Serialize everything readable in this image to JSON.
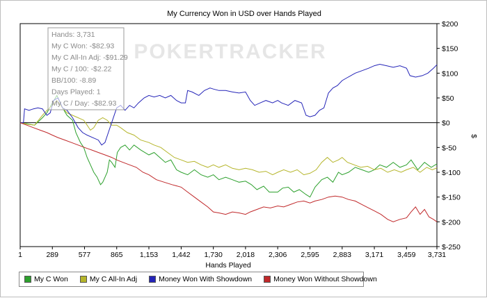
{
  "chart_data": {
    "type": "line",
    "title": "My Currency Won in USD over Hands Played",
    "xlabel": "Hands Played",
    "ylabel": "$",
    "xlim": [
      1,
      3731
    ],
    "ylim": [
      -250,
      200
    ],
    "x_ticks": [
      1,
      289,
      577,
      865,
      1153,
      1442,
      1730,
      2018,
      2306,
      2595,
      2883,
      3171,
      3459,
      3731
    ],
    "x_tick_labels": [
      "1",
      "289",
      "577",
      "865",
      "1,153",
      "1,442",
      "1,730",
      "2,018",
      "2,306",
      "2,595",
      "2,883",
      "3,171",
      "3,459",
      "3,731"
    ],
    "y_ticks": [
      200,
      150,
      100,
      50,
      0,
      -50,
      -100,
      -150,
      -200,
      -250
    ],
    "y_tick_labels": [
      "$200",
      "$150",
      "$100",
      "$50",
      "$0",
      "$-50",
      "$-100",
      "$-150",
      "$-200",
      "$-250"
    ],
    "grid": false,
    "zero_line": true,
    "legend_position": "bottom",
    "series": [
      {
        "name": "My C Won",
        "color": "#2ca02c",
        "points": [
          [
            1,
            0
          ],
          [
            60,
            -2
          ],
          [
            130,
            -5
          ],
          [
            200,
            10
          ],
          [
            240,
            20
          ],
          [
            290,
            40
          ],
          [
            330,
            55
          ],
          [
            380,
            30
          ],
          [
            420,
            15
          ],
          [
            470,
            5
          ],
          [
            500,
            -20
          ],
          [
            540,
            -40
          ],
          [
            570,
            -50
          ],
          [
            600,
            -70
          ],
          [
            630,
            -85
          ],
          [
            660,
            -100
          ],
          [
            690,
            -110
          ],
          [
            720,
            -125
          ],
          [
            740,
            -120
          ],
          [
            780,
            -100
          ],
          [
            800,
            -75
          ],
          [
            820,
            -80
          ],
          [
            850,
            -90
          ],
          [
            870,
            -60
          ],
          [
            900,
            -50
          ],
          [
            940,
            -45
          ],
          [
            980,
            -55
          ],
          [
            1020,
            -45
          ],
          [
            1080,
            -55
          ],
          [
            1153,
            -65
          ],
          [
            1200,
            -60
          ],
          [
            1250,
            -70
          ],
          [
            1300,
            -80
          ],
          [
            1350,
            -75
          ],
          [
            1400,
            -95
          ],
          [
            1442,
            -100
          ],
          [
            1500,
            -105
          ],
          [
            1560,
            -95
          ],
          [
            1620,
            -105
          ],
          [
            1680,
            -110
          ],
          [
            1730,
            -105
          ],
          [
            1780,
            -115
          ],
          [
            1840,
            -110
          ],
          [
            1900,
            -115
          ],
          [
            1960,
            -120
          ],
          [
            2018,
            -118
          ],
          [
            2070,
            -125
          ],
          [
            2120,
            -135
          ],
          [
            2180,
            -128
          ],
          [
            2230,
            -140
          ],
          [
            2306,
            -140
          ],
          [
            2350,
            -132
          ],
          [
            2400,
            -130
          ],
          [
            2450,
            -140
          ],
          [
            2500,
            -135
          ],
          [
            2560,
            -145
          ],
          [
            2595,
            -150
          ],
          [
            2640,
            -130
          ],
          [
            2700,
            -115
          ],
          [
            2750,
            -110
          ],
          [
            2800,
            -120
          ],
          [
            2850,
            -100
          ],
          [
            2883,
            -105
          ],
          [
            2940,
            -100
          ],
          [
            3000,
            -90
          ],
          [
            3060,
            -95
          ],
          [
            3120,
            -100
          ],
          [
            3171,
            -95
          ],
          [
            3220,
            -85
          ],
          [
            3280,
            -90
          ],
          [
            3340,
            -80
          ],
          [
            3400,
            -90
          ],
          [
            3459,
            -85
          ],
          [
            3500,
            -75
          ],
          [
            3560,
            -95
          ],
          [
            3620,
            -80
          ],
          [
            3680,
            -90
          ],
          [
            3731,
            -83
          ]
        ]
      },
      {
        "name": "My C All-In Adj",
        "color": "#b5b52a",
        "points": [
          [
            1,
            0
          ],
          [
            60,
            -3
          ],
          [
            130,
            -5
          ],
          [
            200,
            15
          ],
          [
            240,
            25
          ],
          [
            290,
            35
          ],
          [
            330,
            45
          ],
          [
            380,
            30
          ],
          [
            420,
            20
          ],
          [
            470,
            15
          ],
          [
            520,
            10
          ],
          [
            570,
            5
          ],
          [
            600,
            -5
          ],
          [
            630,
            -15
          ],
          [
            660,
            -10
          ],
          [
            700,
            5
          ],
          [
            740,
            10
          ],
          [
            780,
            5
          ],
          [
            820,
            -5
          ],
          [
            865,
            -5
          ],
          [
            900,
            -10
          ],
          [
            960,
            -20
          ],
          [
            1020,
            -25
          ],
          [
            1080,
            -35
          ],
          [
            1153,
            -40
          ],
          [
            1200,
            -45
          ],
          [
            1260,
            -50
          ],
          [
            1320,
            -60
          ],
          [
            1380,
            -70
          ],
          [
            1442,
            -75
          ],
          [
            1500,
            -80
          ],
          [
            1560,
            -78
          ],
          [
            1620,
            -85
          ],
          [
            1680,
            -90
          ],
          [
            1730,
            -85
          ],
          [
            1780,
            -90
          ],
          [
            1840,
            -85
          ],
          [
            1900,
            -92
          ],
          [
            1960,
            -95
          ],
          [
            2018,
            -92
          ],
          [
            2080,
            -95
          ],
          [
            2140,
            -100
          ],
          [
            2200,
            -98
          ],
          [
            2260,
            -105
          ],
          [
            2306,
            -100
          ],
          [
            2360,
            -95
          ],
          [
            2420,
            -100
          ],
          [
            2480,
            -95
          ],
          [
            2540,
            -105
          ],
          [
            2595,
            -102
          ],
          [
            2650,
            -95
          ],
          [
            2700,
            -80
          ],
          [
            2750,
            -70
          ],
          [
            2800,
            -80
          ],
          [
            2850,
            -75
          ],
          [
            2883,
            -70
          ],
          [
            2930,
            -80
          ],
          [
            2990,
            -85
          ],
          [
            3050,
            -90
          ],
          [
            3110,
            -88
          ],
          [
            3171,
            -95
          ],
          [
            3230,
            -92
          ],
          [
            3290,
            -100
          ],
          [
            3350,
            -95
          ],
          [
            3410,
            -100
          ],
          [
            3459,
            -95
          ],
          [
            3520,
            -90
          ],
          [
            3580,
            -100
          ],
          [
            3640,
            -90
          ],
          [
            3690,
            -95
          ],
          [
            3731,
            -91
          ]
        ]
      },
      {
        "name": "Money Won With Showdown",
        "color": "#2424b8",
        "points": [
          [
            1,
            0
          ],
          [
            30,
            0
          ],
          [
            40,
            28
          ],
          [
            80,
            25
          ],
          [
            120,
            28
          ],
          [
            160,
            30
          ],
          [
            200,
            28
          ],
          [
            240,
            15
          ],
          [
            270,
            20
          ],
          [
            300,
            45
          ],
          [
            340,
            50
          ],
          [
            380,
            30
          ],
          [
            420,
            25
          ],
          [
            470,
            10
          ],
          [
            520,
            -10
          ],
          [
            560,
            -20
          ],
          [
            600,
            -25
          ],
          [
            650,
            -30
          ],
          [
            700,
            -35
          ],
          [
            730,
            -45
          ],
          [
            760,
            -40
          ],
          [
            790,
            -20
          ],
          [
            820,
            0
          ],
          [
            865,
            30
          ],
          [
            900,
            35
          ],
          [
            940,
            25
          ],
          [
            980,
            35
          ],
          [
            1020,
            30
          ],
          [
            1060,
            40
          ],
          [
            1110,
            50
          ],
          [
            1153,
            55
          ],
          [
            1200,
            52
          ],
          [
            1250,
            55
          ],
          [
            1300,
            50
          ],
          [
            1350,
            55
          ],
          [
            1400,
            45
          ],
          [
            1442,
            40
          ],
          [
            1480,
            40
          ],
          [
            1500,
            65
          ],
          [
            1540,
            62
          ],
          [
            1600,
            55
          ],
          [
            1650,
            65
          ],
          [
            1700,
            70
          ],
          [
            1730,
            68
          ],
          [
            1780,
            65
          ],
          [
            1840,
            65
          ],
          [
            1900,
            62
          ],
          [
            1960,
            60
          ],
          [
            2018,
            62
          ],
          [
            2060,
            45
          ],
          [
            2100,
            35
          ],
          [
            2150,
            40
          ],
          [
            2200,
            45
          ],
          [
            2260,
            40
          ],
          [
            2306,
            45
          ],
          [
            2340,
            40
          ],
          [
            2400,
            35
          ],
          [
            2460,
            45
          ],
          [
            2520,
            40
          ],
          [
            2560,
            15
          ],
          [
            2595,
            12
          ],
          [
            2640,
            15
          ],
          [
            2680,
            25
          ],
          [
            2720,
            30
          ],
          [
            2760,
            60
          ],
          [
            2800,
            70
          ],
          [
            2840,
            75
          ],
          [
            2883,
            85
          ],
          [
            2920,
            90
          ],
          [
            2960,
            95
          ],
          [
            3000,
            100
          ],
          [
            3060,
            105
          ],
          [
            3120,
            110
          ],
          [
            3171,
            115
          ],
          [
            3220,
            118
          ],
          [
            3280,
            115
          ],
          [
            3340,
            112
          ],
          [
            3400,
            115
          ],
          [
            3459,
            110
          ],
          [
            3490,
            95
          ],
          [
            3540,
            92
          ],
          [
            3600,
            95
          ],
          [
            3650,
            100
          ],
          [
            3700,
            110
          ],
          [
            3731,
            117
          ]
        ]
      },
      {
        "name": "Money Won Without Showdown",
        "color": "#c0282a",
        "points": [
          [
            1,
            0
          ],
          [
            60,
            -5
          ],
          [
            120,
            -10
          ],
          [
            180,
            -15
          ],
          [
            240,
            -20
          ],
          [
            289,
            -25
          ],
          [
            340,
            -30
          ],
          [
            400,
            -35
          ],
          [
            460,
            -40
          ],
          [
            520,
            -45
          ],
          [
            577,
            -50
          ],
          [
            640,
            -55
          ],
          [
            700,
            -60
          ],
          [
            760,
            -65
          ],
          [
            820,
            -70
          ],
          [
            865,
            -75
          ],
          [
            920,
            -80
          ],
          [
            980,
            -85
          ],
          [
            1040,
            -90
          ],
          [
            1100,
            -100
          ],
          [
            1153,
            -105
          ],
          [
            1220,
            -115
          ],
          [
            1290,
            -120
          ],
          [
            1360,
            -125
          ],
          [
            1442,
            -130
          ],
          [
            1500,
            -140
          ],
          [
            1560,
            -150
          ],
          [
            1620,
            -160
          ],
          [
            1680,
            -170
          ],
          [
            1730,
            -180
          ],
          [
            1780,
            -182
          ],
          [
            1840,
            -185
          ],
          [
            1900,
            -180
          ],
          [
            1960,
            -182
          ],
          [
            2018,
            -185
          ],
          [
            2060,
            -180
          ],
          [
            2120,
            -175
          ],
          [
            2180,
            -170
          ],
          [
            2240,
            -172
          ],
          [
            2306,
            -168
          ],
          [
            2360,
            -170
          ],
          [
            2420,
            -165
          ],
          [
            2480,
            -160
          ],
          [
            2540,
            -158
          ],
          [
            2595,
            -162
          ],
          [
            2640,
            -158
          ],
          [
            2700,
            -155
          ],
          [
            2760,
            -150
          ],
          [
            2820,
            -148
          ],
          [
            2883,
            -150
          ],
          [
            2940,
            -155
          ],
          [
            3000,
            -158
          ],
          [
            3060,
            -165
          ],
          [
            3120,
            -172
          ],
          [
            3171,
            -178
          ],
          [
            3230,
            -185
          ],
          [
            3290,
            -195
          ],
          [
            3340,
            -200
          ],
          [
            3400,
            -195
          ],
          [
            3459,
            -192
          ],
          [
            3500,
            -180
          ],
          [
            3540,
            -170
          ],
          [
            3580,
            -185
          ],
          [
            3620,
            -175
          ],
          [
            3660,
            -190
          ],
          [
            3700,
            -195
          ],
          [
            3731,
            -200
          ]
        ]
      }
    ]
  },
  "tooltip": {
    "lines": [
      "Hands: 3,731",
      "My C Won: -$82.93",
      "My C All-In Adj: -$91.29",
      "My C / 100: -$2.22",
      "BB/100: -8.89",
      "Days Played: 1",
      "My C / Day: -$82.93"
    ]
  },
  "watermark": "POKERTRACKER"
}
